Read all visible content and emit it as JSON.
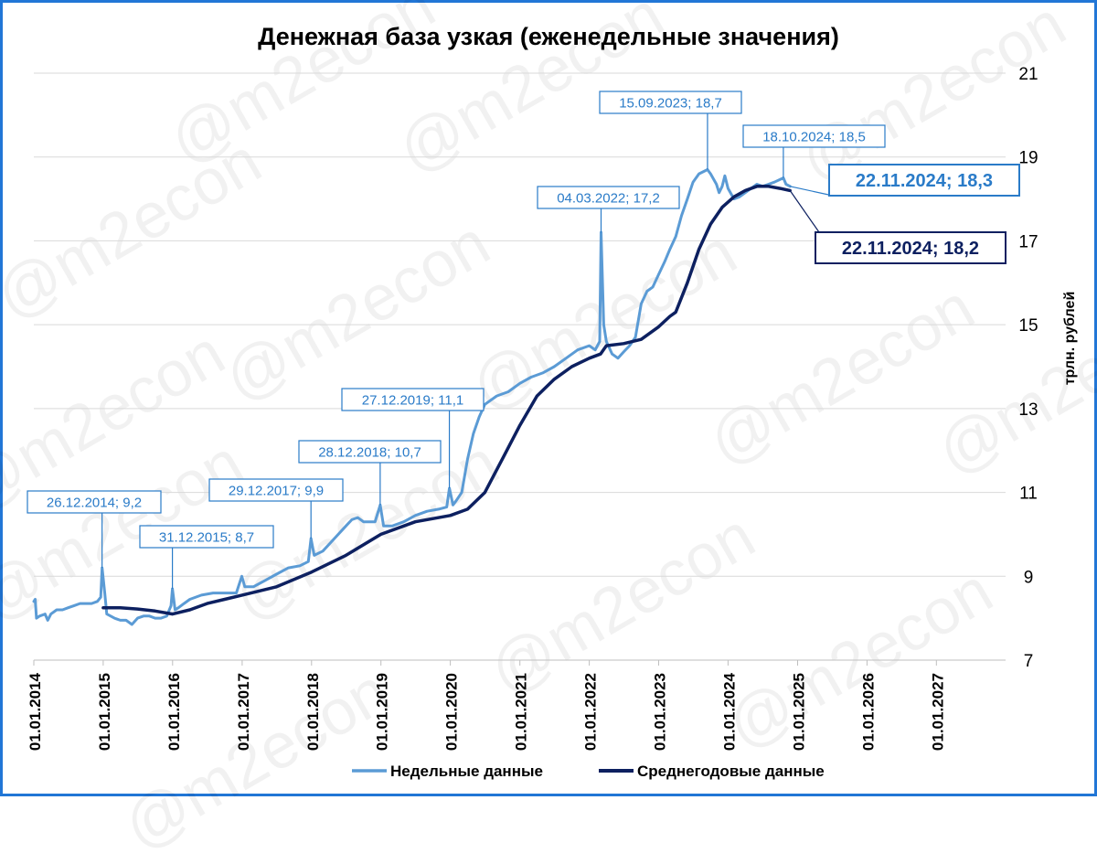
{
  "watermark": "@m2econ",
  "chart_data": {
    "type": "line",
    "title": "Денежная база узкая (еженедельные значения)",
    "ylabel": "трлн. рублей",
    "xlabel": "",
    "ylim": [
      7,
      21
    ],
    "yticks": [
      7,
      9,
      11,
      13,
      15,
      17,
      19,
      21
    ],
    "x_start": "01.01.2014",
    "x_end": "31.12.2027",
    "xticks": [
      "01.01.2014",
      "01.01.2015",
      "01.01.2016",
      "01.01.2017",
      "01.01.2018",
      "01.01.2019",
      "01.01.2020",
      "01.01.2021",
      "01.01.2022",
      "01.01.2023",
      "01.01.2024",
      "01.01.2025",
      "01.01.2026",
      "01.01.2027"
    ],
    "grid": "horizontal",
    "legend_position": "bottom",
    "series": [
      {
        "name": "Недельные данные",
        "color": "#5b9bd5",
        "points": [
          [
            "01.01.2014",
            8.4
          ],
          [
            "08.01.2014",
            8.45
          ],
          [
            "15.01.2014",
            8.0
          ],
          [
            "01.02.2014",
            8.05
          ],
          [
            "01.03.2014",
            8.1
          ],
          [
            "15.03.2014",
            7.95
          ],
          [
            "01.04.2014",
            8.1
          ],
          [
            "01.05.2014",
            8.2
          ],
          [
            "01.06.2014",
            8.2
          ],
          [
            "01.07.2014",
            8.25
          ],
          [
            "01.08.2014",
            8.3
          ],
          [
            "01.09.2014",
            8.35
          ],
          [
            "01.10.2014",
            8.35
          ],
          [
            "01.11.2014",
            8.35
          ],
          [
            "01.12.2014",
            8.4
          ],
          [
            "19.12.2014",
            8.5
          ],
          [
            "26.12.2014",
            9.2
          ],
          [
            "09.01.2015",
            8.6
          ],
          [
            "20.01.2015",
            8.1
          ],
          [
            "01.03.2015",
            8.0
          ],
          [
            "01.04.2015",
            7.95
          ],
          [
            "01.05.2015",
            7.95
          ],
          [
            "01.06.2015",
            7.85
          ],
          [
            "01.07.2015",
            8.0
          ],
          [
            "01.08.2015",
            8.05
          ],
          [
            "01.09.2015",
            8.05
          ],
          [
            "01.10.2015",
            8.0
          ],
          [
            "01.11.2015",
            8.0
          ],
          [
            "01.12.2015",
            8.05
          ],
          [
            "24.12.2015",
            8.3
          ],
          [
            "31.12.2015",
            8.7
          ],
          [
            "14.01.2016",
            8.2
          ],
          [
            "01.02.2016",
            8.25
          ],
          [
            "01.03.2016",
            8.35
          ],
          [
            "01.04.2016",
            8.45
          ],
          [
            "01.06.2016",
            8.55
          ],
          [
            "01.08.2016",
            8.6
          ],
          [
            "01.10.2016",
            8.6
          ],
          [
            "01.12.2016",
            8.6
          ],
          [
            "30.12.2016",
            9.0
          ],
          [
            "15.01.2017",
            8.75
          ],
          [
            "01.03.2017",
            8.75
          ],
          [
            "01.05.2017",
            8.9
          ],
          [
            "01.07.2017",
            9.05
          ],
          [
            "01.09.2017",
            9.2
          ],
          [
            "01.11.2017",
            9.25
          ],
          [
            "15.12.2017",
            9.35
          ],
          [
            "29.12.2017",
            9.9
          ],
          [
            "15.01.2018",
            9.5
          ],
          [
            "01.03.2018",
            9.6
          ],
          [
            "01.05.2018",
            9.9
          ],
          [
            "01.07.2018",
            10.2
          ],
          [
            "01.08.2018",
            10.35
          ],
          [
            "01.09.2018",
            10.4
          ],
          [
            "01.10.2018",
            10.3
          ],
          [
            "01.12.2018",
            10.3
          ],
          [
            "28.12.2018",
            10.7
          ],
          [
            "15.01.2019",
            10.2
          ],
          [
            "01.03.2019",
            10.2
          ],
          [
            "01.05.2019",
            10.3
          ],
          [
            "01.07.2019",
            10.45
          ],
          [
            "01.09.2019",
            10.55
          ],
          [
            "01.11.2019",
            10.6
          ],
          [
            "13.12.2019",
            10.65
          ],
          [
            "27.12.2019",
            11.1
          ],
          [
            "15.01.2020",
            10.7
          ],
          [
            "01.02.2020",
            10.8
          ],
          [
            "01.03.2020",
            11.0
          ],
          [
            "01.04.2020",
            11.8
          ],
          [
            "01.05.2020",
            12.4
          ],
          [
            "01.06.2020",
            12.8
          ],
          [
            "01.07.2020",
            13.1
          ],
          [
            "01.09.2020",
            13.3
          ],
          [
            "01.11.2020",
            13.4
          ],
          [
            "01.01.2021",
            13.6
          ],
          [
            "01.03.2021",
            13.75
          ],
          [
            "01.05.2021",
            13.85
          ],
          [
            "01.07.2021",
            14.0
          ],
          [
            "01.09.2021",
            14.2
          ],
          [
            "01.11.2021",
            14.4
          ],
          [
            "01.01.2022",
            14.5
          ],
          [
            "01.02.2022",
            14.4
          ],
          [
            "25.02.2022",
            14.6
          ],
          [
            "04.03.2022",
            17.2
          ],
          [
            "18.03.2022",
            15.0
          ],
          [
            "01.04.2022",
            14.6
          ],
          [
            "01.05.2022",
            14.3
          ],
          [
            "01.06.2022",
            14.2
          ],
          [
            "01.07.2022",
            14.35
          ],
          [
            "01.08.2022",
            14.5
          ],
          [
            "01.09.2022",
            14.7
          ],
          [
            "01.10.2022",
            15.5
          ],
          [
            "01.11.2022",
            15.8
          ],
          [
            "01.12.2022",
            15.9
          ],
          [
            "01.01.2023",
            16.2
          ],
          [
            "01.02.2023",
            16.5
          ],
          [
            "01.03.2023",
            16.8
          ],
          [
            "01.04.2023",
            17.1
          ],
          [
            "01.05.2023",
            17.6
          ],
          [
            "01.06.2023",
            18.0
          ],
          [
            "01.07.2023",
            18.4
          ],
          [
            "01.08.2023",
            18.6
          ],
          [
            "15.09.2023",
            18.7
          ],
          [
            "01.10.2023",
            18.6
          ],
          [
            "01.11.2023",
            18.35
          ],
          [
            "15.11.2023",
            18.15
          ],
          [
            "01.12.2023",
            18.3
          ],
          [
            "15.12.2023",
            18.55
          ],
          [
            "01.01.2024",
            18.25
          ],
          [
            "01.02.2024",
            18.0
          ],
          [
            "01.03.2024",
            18.05
          ],
          [
            "01.04.2024",
            18.15
          ],
          [
            "01.05.2024",
            18.25
          ],
          [
            "01.06.2024",
            18.35
          ],
          [
            "01.07.2024",
            18.3
          ],
          [
            "01.08.2024",
            18.35
          ],
          [
            "01.09.2024",
            18.4
          ],
          [
            "18.10.2024",
            18.5
          ],
          [
            "01.11.2024",
            18.35
          ],
          [
            "22.11.2024",
            18.3
          ]
        ]
      },
      {
        "name": "Среднегодовые данные",
        "color": "#0d2060",
        "points": [
          [
            "01.01.2015",
            8.25
          ],
          [
            "01.04.2015",
            8.25
          ],
          [
            "01.07.2015",
            8.22
          ],
          [
            "01.10.2015",
            8.17
          ],
          [
            "01.01.2016",
            8.1
          ],
          [
            "01.04.2016",
            8.2
          ],
          [
            "01.07.2016",
            8.35
          ],
          [
            "01.10.2016",
            8.45
          ],
          [
            "01.01.2017",
            8.55
          ],
          [
            "01.07.2017",
            8.75
          ],
          [
            "01.01.2018",
            9.1
          ],
          [
            "01.07.2018",
            9.5
          ],
          [
            "01.01.2019",
            10.0
          ],
          [
            "01.07.2019",
            10.3
          ],
          [
            "01.01.2020",
            10.45
          ],
          [
            "01.04.2020",
            10.6
          ],
          [
            "01.07.2020",
            11.0
          ],
          [
            "01.10.2020",
            11.8
          ],
          [
            "01.01.2021",
            12.6
          ],
          [
            "01.04.2021",
            13.3
          ],
          [
            "01.07.2021",
            13.7
          ],
          [
            "01.10.2021",
            14.0
          ],
          [
            "01.01.2022",
            14.2
          ],
          [
            "01.03.2022",
            14.3
          ],
          [
            "01.04.2022",
            14.5
          ],
          [
            "01.07.2022",
            14.55
          ],
          [
            "01.10.2022",
            14.65
          ],
          [
            "01.01.2023",
            14.95
          ],
          [
            "01.03.2023",
            15.2
          ],
          [
            "01.04.2023",
            15.3
          ],
          [
            "01.06.2023",
            16.0
          ],
          [
            "01.08.2023",
            16.8
          ],
          [
            "01.10.2023",
            17.4
          ],
          [
            "01.12.2023",
            17.8
          ],
          [
            "01.02.2024",
            18.05
          ],
          [
            "01.04.2024",
            18.2
          ],
          [
            "01.06.2024",
            18.3
          ],
          [
            "01.08.2024",
            18.3
          ],
          [
            "01.10.2024",
            18.25
          ],
          [
            "22.11.2024",
            18.2
          ]
        ]
      }
    ],
    "annotations": [
      {
        "date": "26.12.2014",
        "value": 9.2,
        "text": "26.12.2014;  9,2",
        "series": 0
      },
      {
        "date": "31.12.2015",
        "value": 8.7,
        "text": "31.12.2015;  8,7",
        "series": 0
      },
      {
        "date": "29.12.2017",
        "value": 9.9,
        "text": "29.12.2017;  9,9",
        "series": 0
      },
      {
        "date": "28.12.2018",
        "value": 10.7,
        "text": "28.12.2018;  10,7",
        "series": 0
      },
      {
        "date": "27.12.2019",
        "value": 11.1,
        "text": "27.12.2019;  11,1",
        "series": 0
      },
      {
        "date": "04.03.2022",
        "value": 17.2,
        "text": "04.03.2022;  17,2",
        "series": 0
      },
      {
        "date": "15.09.2023",
        "value": 18.7,
        "text": "15.09.2023;  18,7",
        "series": 0
      },
      {
        "date": "18.10.2024",
        "value": 18.5,
        "text": "18.10.2024;  18,5",
        "series": 0
      },
      {
        "date": "22.11.2024",
        "value": 18.3,
        "text": "22.11.2024;  18,3",
        "series": 0,
        "big": true
      },
      {
        "date": "22.11.2024",
        "value": 18.2,
        "text": "22.11.2024;  18,2",
        "series": 1,
        "big": true
      }
    ]
  }
}
